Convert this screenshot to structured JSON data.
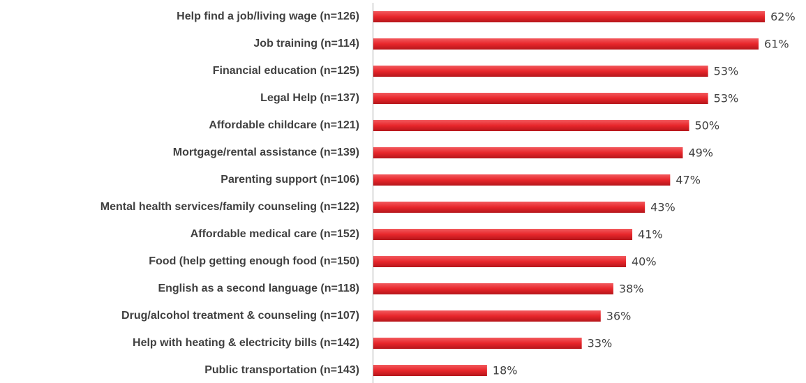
{
  "chart_data": {
    "type": "bar",
    "orientation": "horizontal",
    "color": "#e8262b",
    "categories": [
      "Help find a job/living wage (n=126)",
      "Job training (n=114)",
      "Financial education (n=125)",
      "Legal Help (n=137)",
      "Affordable childcare (n=121)",
      "Mortgage/rental assistance (n=139)",
      "Parenting support (n=106)",
      "Mental health services/family counseling (n=122)",
      "Affordable medical care (n=152)",
      "Food (help getting enough food (n=150)",
      "English as a second language (n=118)",
      "Drug/alcohol treatment & counseling (n=107)",
      "Help with heating & electricity bills (n=142)",
      "Public transportation (n=143)"
    ],
    "values": [
      62,
      61,
      53,
      53,
      50,
      49,
      47,
      43,
      41,
      40,
      38,
      36,
      33,
      18
    ],
    "value_labels": [
      "62%",
      "61%",
      "53%",
      "53%",
      "50%",
      "49%",
      "47%",
      "43%",
      "41%",
      "40%",
      "38%",
      "36%",
      "33%",
      "18%"
    ]
  }
}
